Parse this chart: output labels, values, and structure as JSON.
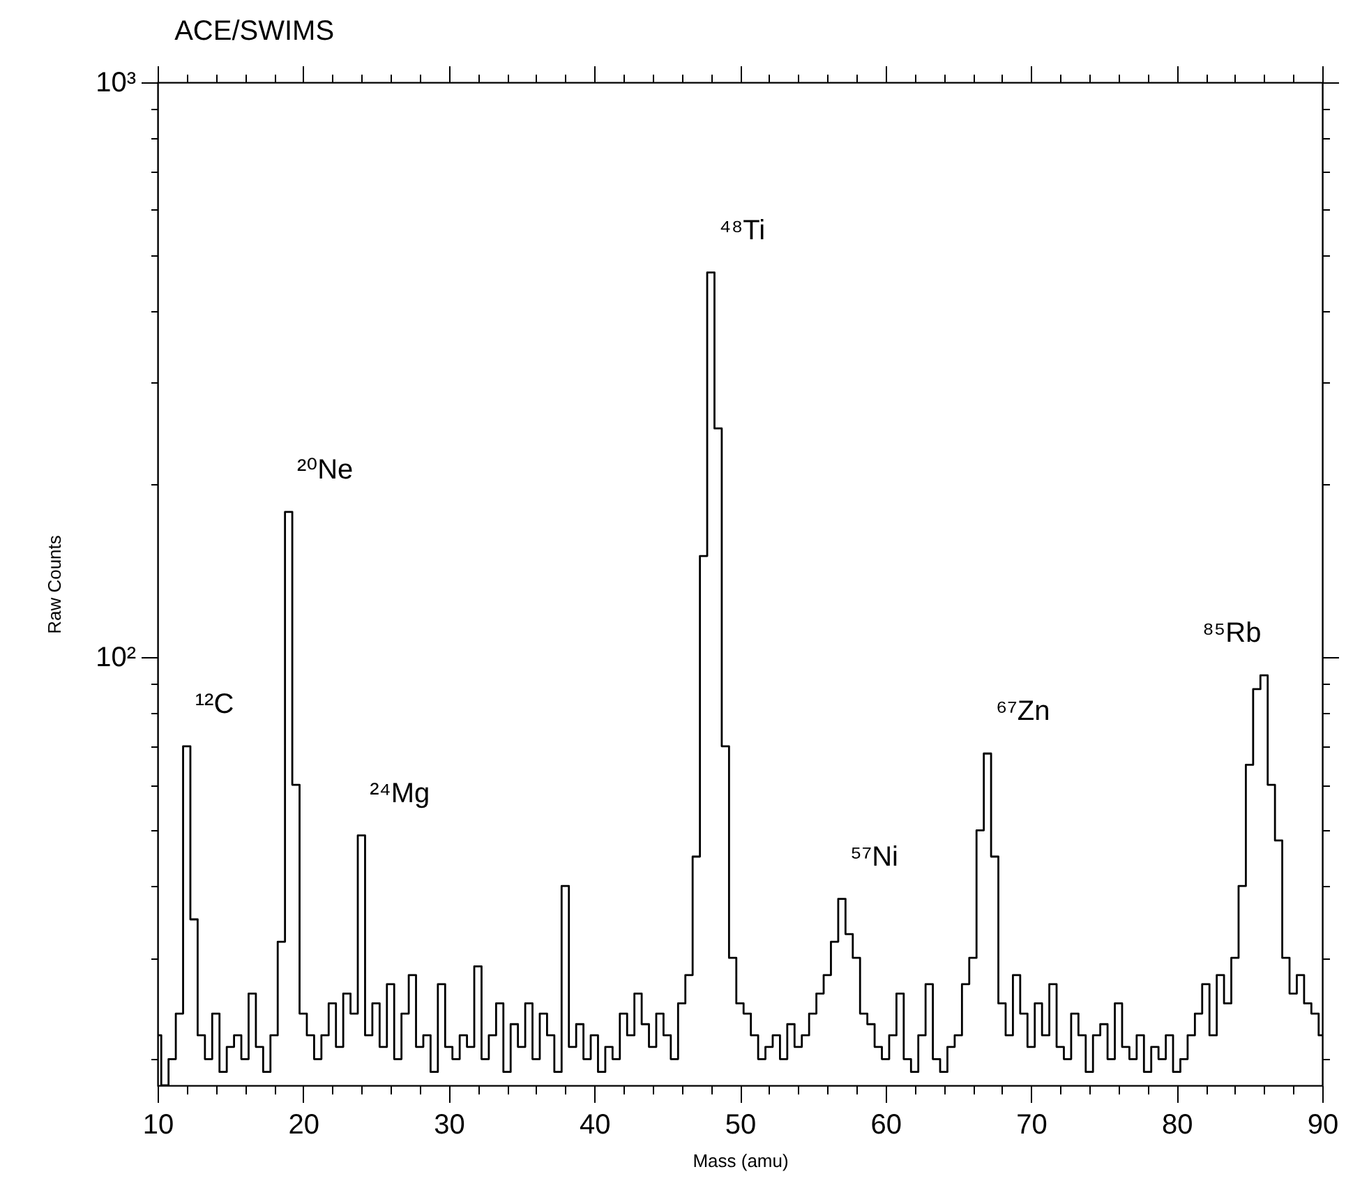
{
  "chart_data": {
    "type": "step",
    "title": "ACE/SWIMS",
    "xlabel": "Mass (amu)",
    "ylabel": "Raw Counts",
    "log": "y",
    "xlim": [
      10,
      90
    ],
    "ylim": [
      18,
      1000
    ],
    "xticks": [
      10,
      {
        "value": 12,
        "label": null
      },
      {
        "value": 14,
        "label": null
      },
      {
        "value": 16,
        "label": null
      },
      {
        "value": 18,
        "label": null
      },
      20,
      {
        "value": 22,
        "label": null
      },
      {
        "value": 24,
        "label": null
      },
      {
        "value": 26,
        "label": null
      },
      {
        "value": 28,
        "label": null
      },
      30,
      {
        "value": 32,
        "label": null
      },
      {
        "value": 34,
        "label": null
      },
      {
        "value": 36,
        "label": null
      },
      {
        "value": 38,
        "label": null
      },
      40,
      {
        "value": 42,
        "label": null
      },
      {
        "value": 44,
        "label": null
      },
      {
        "value": 46,
        "label": null
      },
      {
        "value": 48,
        "label": null
      },
      50,
      {
        "value": 52,
        "label": null
      },
      {
        "value": 54,
        "label": null
      },
      {
        "value": 56,
        "label": null
      },
      {
        "value": 58,
        "label": null
      },
      60,
      {
        "value": 62,
        "label": null
      },
      {
        "value": 64,
        "label": null
      },
      {
        "value": 66,
        "label": null
      },
      {
        "value": 68,
        "label": null
      },
      70,
      {
        "value": 72,
        "label": null
      },
      {
        "value": 74,
        "label": null
      },
      {
        "value": 76,
        "label": null
      },
      {
        "value": 78,
        "label": null
      },
      80,
      {
        "value": 82,
        "label": null
      },
      {
        "value": 84,
        "label": null
      },
      {
        "value": 86,
        "label": null
      },
      {
        "value": 88,
        "label": null
      },
      90
    ],
    "yticks": [
      {
        "value": 20,
        "label": null
      },
      {
        "value": 30,
        "label": null
      },
      {
        "value": 40,
        "label": null
      },
      {
        "value": 50,
        "label": null
      },
      {
        "value": 60,
        "label": null
      },
      {
        "value": 70,
        "label": null
      },
      {
        "value": 80,
        "label": null
      },
      {
        "value": 90,
        "label": null
      },
      {
        "value": 100,
        "label": "10²"
      },
      {
        "value": 200,
        "label": null
      },
      {
        "value": 300,
        "label": null
      },
      {
        "value": 400,
        "label": null
      },
      {
        "value": 500,
        "label": null
      },
      {
        "value": 600,
        "label": null
      },
      {
        "value": 700,
        "label": null
      },
      {
        "value": 800,
        "label": null
      },
      {
        "value": 900,
        "label": null
      },
      {
        "value": 1000,
        "label": "10³"
      }
    ],
    "x": [
      10.0,
      10.5,
      11.0,
      11.5,
      12.0,
      12.5,
      13.0,
      13.5,
      14.0,
      14.5,
      15.0,
      15.5,
      16.0,
      16.5,
      17.0,
      17.5,
      18.0,
      18.5,
      19.0,
      19.5,
      20.0,
      20.5,
      21.0,
      21.5,
      22.0,
      22.5,
      23.0,
      23.5,
      24.0,
      24.5,
      25.0,
      25.5,
      26.0,
      26.5,
      27.0,
      27.5,
      28.0,
      28.5,
      29.0,
      29.5,
      30.0,
      30.5,
      31.0,
      31.5,
      32.0,
      32.5,
      33.0,
      33.5,
      34.0,
      34.5,
      35.0,
      35.5,
      36.0,
      36.5,
      37.0,
      37.5,
      38.0,
      38.5,
      39.0,
      39.5,
      40.0,
      40.5,
      41.0,
      41.5,
      42.0,
      42.5,
      43.0,
      43.5,
      44.0,
      44.5,
      45.0,
      45.5,
      46.0,
      46.5,
      47.0,
      47.5,
      48.0,
      48.5,
      49.0,
      49.5,
      50.0,
      50.5,
      51.0,
      51.5,
      52.0,
      52.5,
      53.0,
      53.5,
      54.0,
      54.5,
      55.0,
      55.5,
      56.0,
      56.5,
      57.0,
      57.5,
      58.0,
      58.5,
      59.0,
      59.5,
      60.0,
      60.5,
      61.0,
      61.5,
      62.0,
      62.5,
      63.0,
      63.5,
      64.0,
      64.5,
      65.0,
      65.5,
      66.0,
      66.5,
      67.0,
      67.5,
      68.0,
      68.5,
      69.0,
      69.5,
      70.0,
      70.5,
      71.0,
      71.5,
      72.0,
      72.5,
      73.0,
      73.5,
      74.0,
      74.5,
      75.0,
      75.5,
      76.0,
      76.5,
      77.0,
      77.5,
      78.0,
      78.5,
      79.0,
      79.5,
      80.0,
      80.5,
      81.0,
      81.5,
      82.0,
      82.5,
      83.0,
      83.5,
      84.0,
      84.5,
      85.0,
      85.5,
      86.0,
      86.5,
      87.0,
      87.5,
      88.0,
      88.5,
      89.0,
      89.5,
      90.0
    ],
    "series": [
      {
        "color": "#000000",
        "values": [
          22,
          18,
          20,
          24,
          70,
          35,
          22,
          20,
          24,
          19,
          21,
          22,
          20,
          26,
          21,
          19,
          22,
          32,
          179,
          60,
          24,
          22,
          20,
          22,
          25,
          21,
          26,
          24,
          49,
          22,
          25,
          21,
          27,
          20,
          24,
          28,
          21,
          22,
          19,
          27,
          21,
          20,
          22,
          21,
          29,
          20,
          22,
          25,
          19,
          23,
          21,
          25,
          20,
          24,
          22,
          19,
          40,
          21,
          23,
          20,
          22,
          19,
          21,
          20,
          24,
          22,
          26,
          23,
          21,
          24,
          22,
          20,
          25,
          28,
          45,
          150,
          467,
          250,
          70,
          30,
          25,
          24,
          22,
          20,
          21,
          22,
          20,
          23,
          21,
          22,
          24,
          26,
          28,
          32,
          38,
          33,
          30,
          24,
          23,
          21,
          20,
          22,
          26,
          20,
          19,
          22,
          27,
          20,
          19,
          21,
          22,
          27,
          30,
          50,
          68,
          45,
          25,
          22,
          28,
          24,
          21,
          25,
          22,
          27,
          21,
          20,
          24,
          22,
          19,
          22,
          23,
          20,
          25,
          21,
          20,
          22,
          19,
          21,
          20,
          22,
          19,
          20,
          22,
          24,
          27,
          22,
          28,
          25,
          30,
          40,
          65,
          88,
          93,
          60,
          48,
          30,
          26,
          28,
          25,
          24,
          22
        ]
      }
    ],
    "annotations": [
      {
        "text": "¹²C",
        "x": 12.0,
        "y": 70
      },
      {
        "text": "²⁰Ne",
        "x": 19.0,
        "y": 179
      },
      {
        "text": "²⁴Mg",
        "x": 24.0,
        "y": 49
      },
      {
        "text": "⁴⁸Ti",
        "x": 48.0,
        "y": 467
      },
      {
        "text": "⁵⁷Ni",
        "x": 57.0,
        "y": 38
      },
      {
        "text": "⁶⁷Zn",
        "x": 67.0,
        "y": 68
      },
      {
        "text": "⁸⁵Rb",
        "x": 86.0,
        "y": 93
      }
    ]
  }
}
